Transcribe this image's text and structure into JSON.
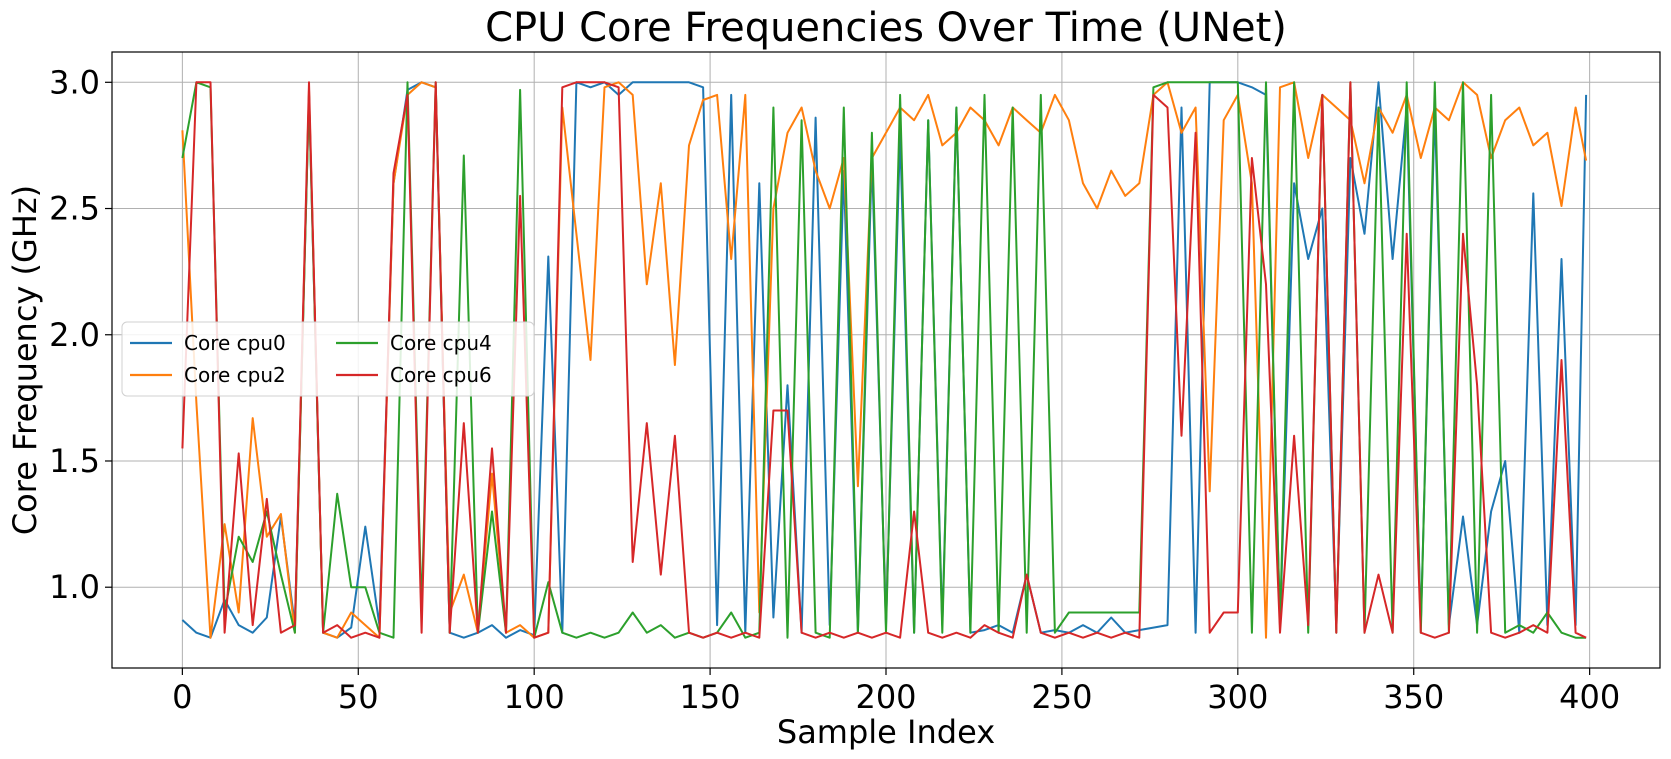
{
  "chart_data": {
    "type": "line",
    "title": "CPU Core Frequencies Over Time (UNet)",
    "xlabel": "Sample Index",
    "ylabel": "Core Frequency (GHz)",
    "xlim": [
      -20,
      420
    ],
    "ylim": [
      0.68,
      3.12
    ],
    "xticks": [
      0,
      50,
      100,
      150,
      200,
      250,
      300,
      350,
      400
    ],
    "yticks": [
      1.0,
      1.5,
      2.0,
      2.5,
      3.0
    ],
    "xtick_labels": [
      "0",
      "50",
      "100",
      "150",
      "200",
      "250",
      "300",
      "350",
      "400"
    ],
    "ytick_labels": [
      "1.0",
      "1.5",
      "2.0",
      "2.5",
      "3.0"
    ],
    "grid": true,
    "legend_position": "center-left",
    "legend_columns": 2,
    "x": [
      0,
      4,
      8,
      12,
      16,
      20,
      24,
      28,
      32,
      36,
      40,
      44,
      48,
      52,
      56,
      60,
      64,
      68,
      72,
      76,
      80,
      84,
      88,
      92,
      96,
      100,
      104,
      108,
      112,
      116,
      120,
      124,
      128,
      132,
      136,
      140,
      144,
      148,
      152,
      156,
      160,
      164,
      168,
      172,
      176,
      180,
      184,
      188,
      192,
      196,
      200,
      204,
      208,
      212,
      216,
      220,
      224,
      228,
      232,
      236,
      240,
      244,
      248,
      252,
      256,
      260,
      264,
      268,
      272,
      276,
      280,
      284,
      288,
      292,
      296,
      300,
      304,
      308,
      312,
      316,
      320,
      324,
      328,
      332,
      336,
      340,
      344,
      348,
      352,
      356,
      360,
      364,
      368,
      372,
      376,
      380,
      384,
      388,
      392,
      396,
      399
    ],
    "series": [
      {
        "name": "Core cpu0",
        "color": "#1f77b4",
        "values": [
          0.87,
          0.82,
          0.8,
          0.95,
          0.85,
          0.82,
          0.88,
          1.28,
          0.85,
          2.95,
          0.82,
          0.8,
          0.84,
          1.24,
          0.85,
          2.6,
          2.97,
          3.0,
          2.98,
          0.82,
          0.8,
          0.82,
          0.85,
          0.8,
          0.83,
          0.81,
          2.31,
          0.82,
          3.0,
          2.98,
          3.0,
          2.95,
          3.0,
          3.0,
          3.0,
          3.0,
          3.0,
          2.98,
          0.85,
          2.95,
          0.82,
          2.6,
          0.88,
          1.8,
          0.82,
          2.86,
          0.85,
          2.65,
          0.82,
          2.7,
          0.85,
          2.8,
          0.82,
          2.85,
          0.85,
          2.9,
          0.82,
          0.83,
          0.85,
          0.82,
          1.05,
          0.82,
          0.83,
          0.82,
          0.85,
          0.82,
          0.88,
          0.82,
          0.83,
          0.84,
          0.85,
          2.9,
          0.82,
          3.0,
          3.0,
          3.0,
          2.98,
          2.95,
          0.85,
          2.6,
          2.3,
          2.5,
          0.85,
          2.7,
          2.4,
          3.0,
          2.3,
          2.9,
          0.85,
          2.9,
          0.85,
          1.28,
          0.85,
          1.3,
          1.5,
          0.82,
          2.56,
          0.85,
          2.3,
          0.85,
          2.95
        ]
      },
      {
        "name": "Core cpu2",
        "color": "#ff7f0e",
        "values": [
          2.81,
          1.73,
          0.8,
          1.25,
          0.9,
          1.67,
          1.2,
          1.29,
          0.82,
          2.97,
          0.82,
          0.8,
          0.9,
          0.85,
          0.8,
          2.6,
          2.95,
          3.0,
          2.98,
          0.9,
          1.05,
          0.82,
          1.45,
          0.82,
          0.85,
          0.8,
          0.82,
          2.9,
          2.4,
          1.9,
          2.98,
          3.0,
          2.95,
          2.2,
          2.6,
          1.88,
          2.75,
          2.93,
          2.95,
          2.3,
          2.95,
          0.9,
          2.5,
          2.8,
          2.9,
          2.65,
          2.5,
          2.7,
          1.4,
          2.7,
          2.8,
          2.9,
          2.85,
          2.95,
          2.75,
          2.8,
          2.9,
          2.85,
          2.75,
          2.9,
          2.85,
          2.8,
          2.95,
          2.85,
          2.6,
          2.5,
          2.65,
          2.55,
          2.6,
          2.95,
          3.0,
          2.8,
          2.9,
          1.38,
          2.85,
          2.95,
          2.6,
          0.8,
          2.98,
          3.0,
          2.7,
          2.95,
          2.9,
          2.85,
          2.6,
          2.9,
          2.8,
          2.95,
          2.7,
          2.9,
          2.85,
          3.0,
          2.95,
          2.7,
          2.85,
          2.9,
          2.75,
          2.8,
          2.51,
          2.9,
          2.69
        ]
      },
      {
        "name": "Core cpu4",
        "color": "#2ca02c",
        "values": [
          2.7,
          3.0,
          2.98,
          0.9,
          1.2,
          1.1,
          1.3,
          1.05,
          0.82,
          2.95,
          0.82,
          1.37,
          1.0,
          1.0,
          0.82,
          0.8,
          3.0,
          0.9,
          3.0,
          0.82,
          2.71,
          0.82,
          1.3,
          0.82,
          2.97,
          0.8,
          1.02,
          0.82,
          0.8,
          0.82,
          0.8,
          0.82,
          0.9,
          0.82,
          0.85,
          0.8,
          0.82,
          0.8,
          0.82,
          0.9,
          0.8,
          0.82,
          2.9,
          0.8,
          2.85,
          0.82,
          0.8,
          2.9,
          0.82,
          2.8,
          0.82,
          2.95,
          0.82,
          2.85,
          0.82,
          2.9,
          0.82,
          2.95,
          0.82,
          2.9,
          0.82,
          2.95,
          0.82,
          0.9,
          0.9,
          0.9,
          0.9,
          0.9,
          0.9,
          2.98,
          3.0,
          3.0,
          3.0,
          3.0,
          3.0,
          3.0,
          0.82,
          3.0,
          0.85,
          3.0,
          0.82,
          2.95,
          0.82,
          3.0,
          0.82,
          2.9,
          0.82,
          3.0,
          0.82,
          3.0,
          0.82,
          3.0,
          0.82,
          2.95,
          0.82,
          0.85,
          0.82,
          0.9,
          0.82,
          0.8,
          0.8
        ]
      },
      {
        "name": "Core cpu6",
        "color": "#d62728",
        "values": [
          1.55,
          3.0,
          3.0,
          0.82,
          1.53,
          0.85,
          1.35,
          0.82,
          0.85,
          3.0,
          0.82,
          0.85,
          0.8,
          0.82,
          0.8,
          2.64,
          2.95,
          0.82,
          3.0,
          0.82,
          1.65,
          0.82,
          1.55,
          0.82,
          2.55,
          0.8,
          0.82,
          2.98,
          3.0,
          3.0,
          3.0,
          2.98,
          1.1,
          1.65,
          1.05,
          1.6,
          0.82,
          0.8,
          0.82,
          0.8,
          0.82,
          0.8,
          1.7,
          1.7,
          0.82,
          0.8,
          0.82,
          0.8,
          0.82,
          0.8,
          0.82,
          0.8,
          1.3,
          0.82,
          0.8,
          0.82,
          0.8,
          0.85,
          0.82,
          0.8,
          1.05,
          0.82,
          0.8,
          0.82,
          0.8,
          0.82,
          0.8,
          0.82,
          0.8,
          2.95,
          2.9,
          1.6,
          2.8,
          0.82,
          0.9,
          0.9,
          2.7,
          2.2,
          0.82,
          1.6,
          0.85,
          2.95,
          0.82,
          3.0,
          0.82,
          1.05,
          0.82,
          2.4,
          0.82,
          0.8,
          0.82,
          2.4,
          1.8,
          0.82,
          0.8,
          0.82,
          0.85,
          0.82,
          1.9,
          0.82,
          0.8
        ]
      }
    ]
  }
}
